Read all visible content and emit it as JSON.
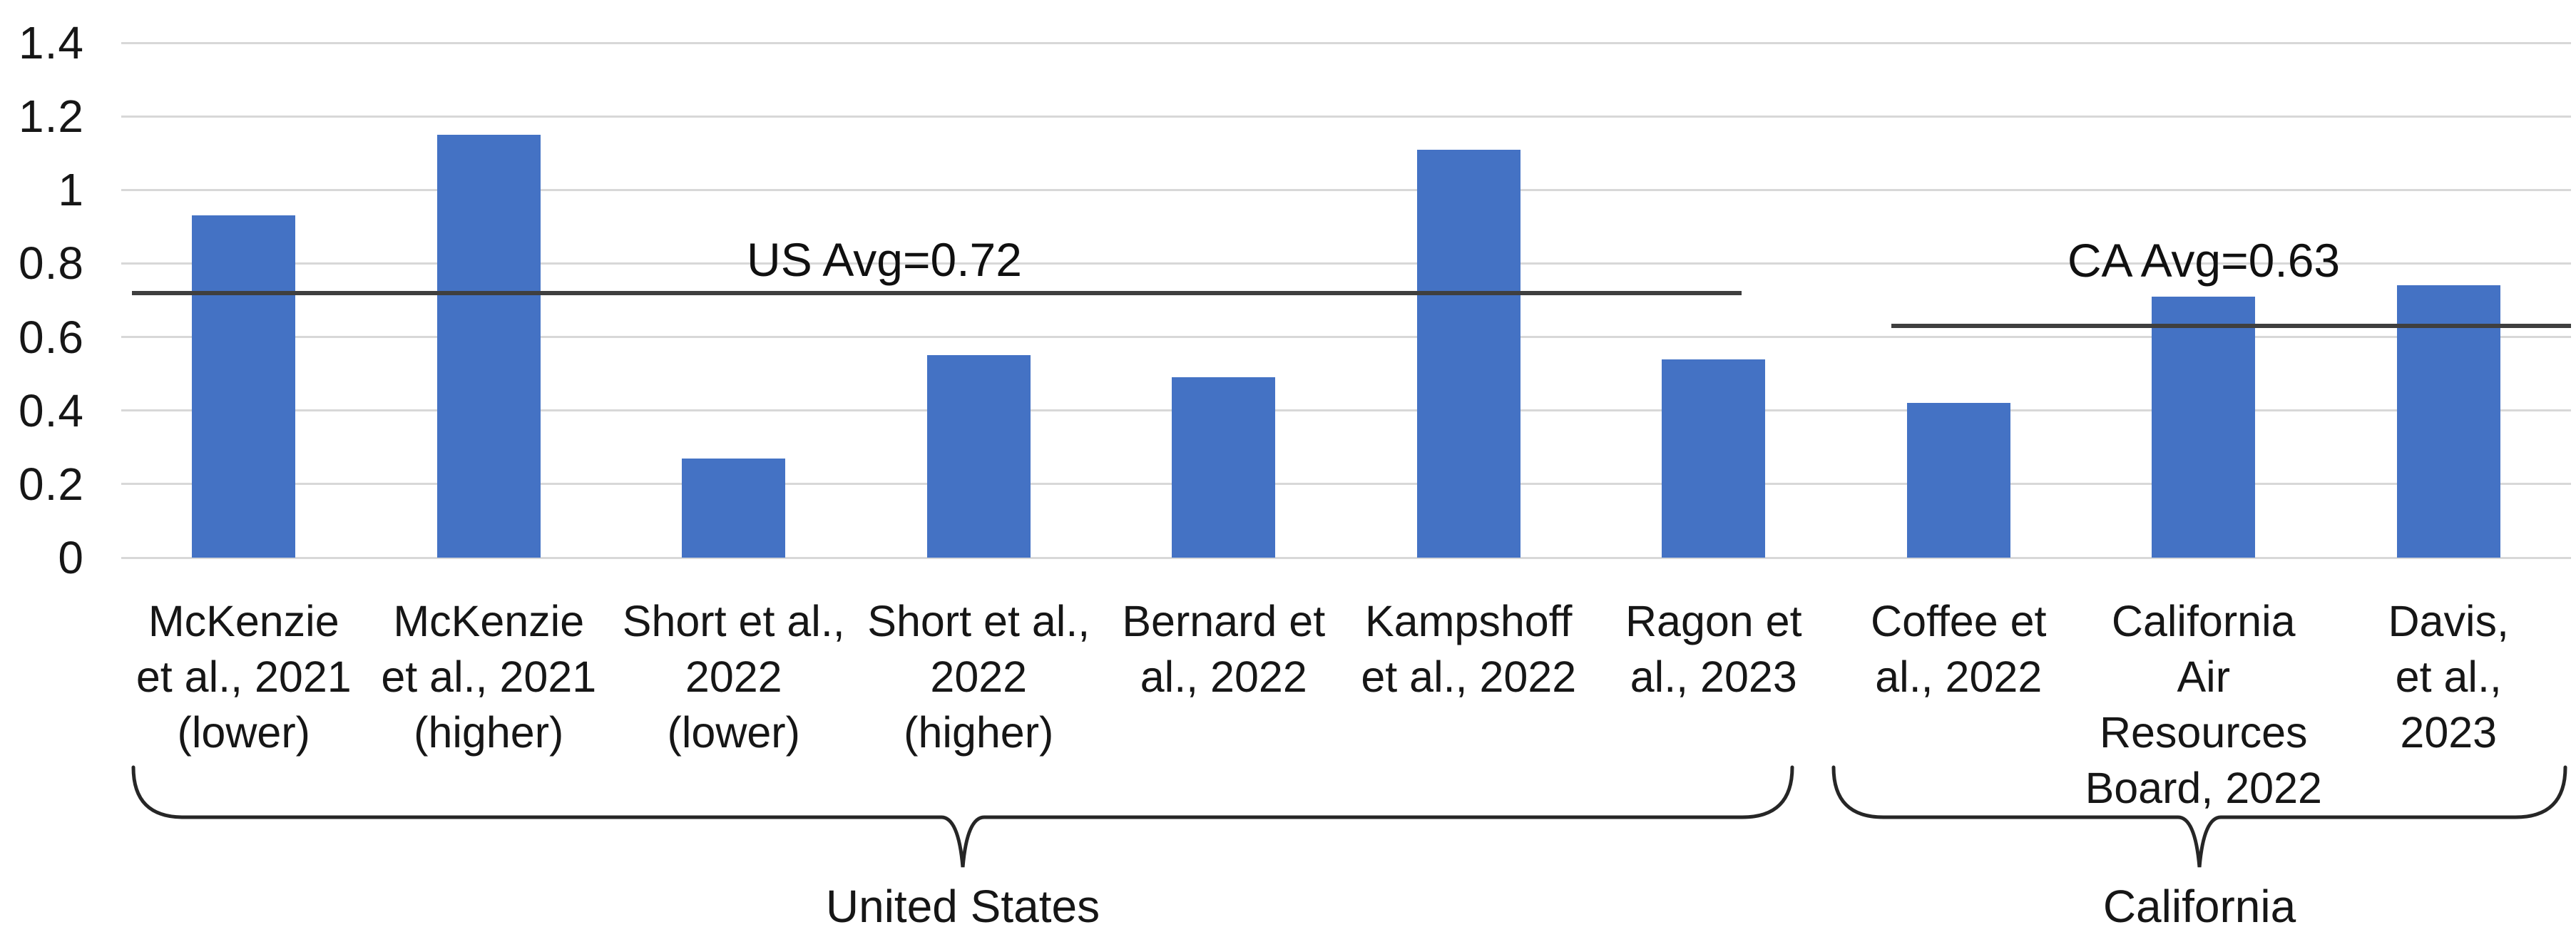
{
  "chart_data": {
    "type": "bar",
    "title": "",
    "xlabel": "",
    "ylabel": "",
    "categories": [
      "McKenzie\net al., 2021\n(lower)",
      "McKenzie\net al., 2021\n(higher)",
      "Short et al.,\n2022\n(lower)",
      "Short et al.,\n2022\n(higher)",
      "Bernard et\nal., 2022",
      "Kampshoff\net al., 2022",
      "Ragon et\nal., 2023",
      "Coffee et\nal., 2022",
      "California\nAir\nResources\nBoard, 2022",
      "Davis, et al.,\n2023"
    ],
    "values": [
      0.93,
      1.15,
      0.27,
      0.55,
      0.49,
      1.11,
      0.54,
      0.42,
      0.71,
      0.74
    ],
    "ylim": [
      0,
      1.4
    ],
    "ytick_labels": [
      "1.4",
      "1.2",
      "1",
      "0.8",
      "0.6",
      "0.4",
      "0.2",
      "0"
    ],
    "grid": "horizontal",
    "legend_position": "none",
    "bar_color": "#4472C4",
    "gridline_color": "#D8D8D8",
    "avg_line_color": "#3f3f3f",
    "annotations": [
      {
        "label": "US Avg=0.72",
        "value": 0.72,
        "group": "United States"
      },
      {
        "label": "CA Avg=0.63",
        "value": 0.63,
        "group": "California"
      }
    ],
    "groups": [
      {
        "label": "United States",
        "category_start_index": 0,
        "category_end_index": 6
      },
      {
        "label": "California",
        "category_start_index": 7,
        "category_end_index": 9
      }
    ]
  }
}
